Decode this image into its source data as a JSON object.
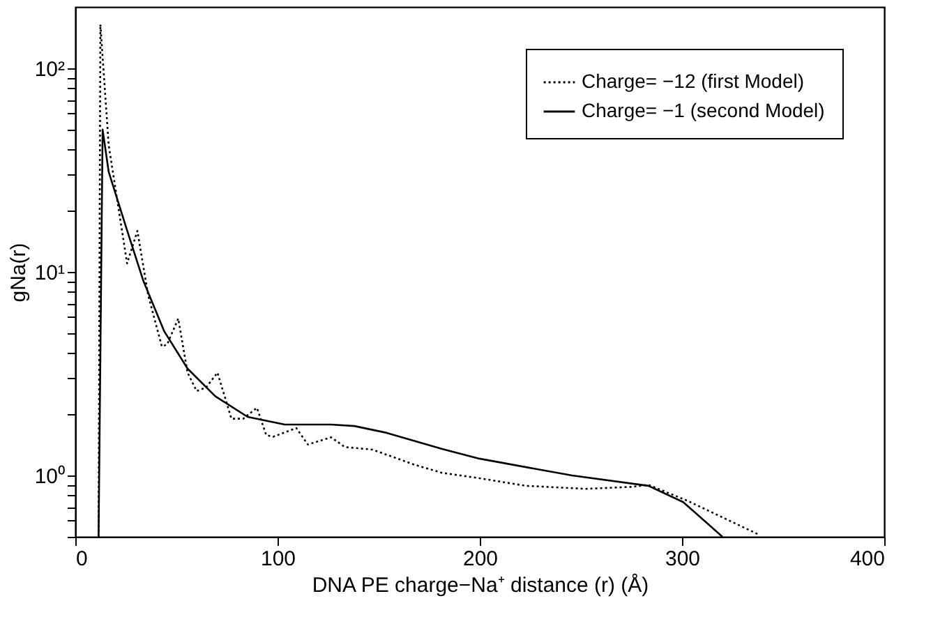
{
  "chart_data": {
    "type": "line",
    "xlabel": "DNA PE charge−Na⁺ distance (r) (Å)",
    "ylabel": "gNa(r)",
    "log": "y",
    "grid": false,
    "legend": "top right",
    "marker": "none",
    "xlim": [
      0,
      400
    ],
    "xticks": [
      0,
      100,
      200,
      300,
      400
    ],
    "ylim": [
      0.5,
      200
    ],
    "yticks": [
      {
        "value": 0.5,
        "label": null
      },
      {
        "value": 0.6,
        "label": null
      },
      {
        "value": 0.7,
        "label": null
      },
      {
        "value": 0.8,
        "label": null
      },
      {
        "value": 0.9,
        "label": null
      },
      {
        "value": 1,
        "label": "10⁰"
      },
      {
        "value": 2,
        "label": null
      },
      {
        "value": 3,
        "label": null
      },
      {
        "value": 4,
        "label": null
      },
      {
        "value": 5,
        "label": null
      },
      {
        "value": 6,
        "label": null
      },
      {
        "value": 7,
        "label": null
      },
      {
        "value": 8,
        "label": null
      },
      {
        "value": 9,
        "label": null
      },
      {
        "value": 10,
        "label": "10¹"
      },
      {
        "value": 20,
        "label": null
      },
      {
        "value": 30,
        "label": null
      },
      {
        "value": 40,
        "label": null
      },
      {
        "value": 50,
        "label": null
      },
      {
        "value": 60,
        "label": null
      },
      {
        "value": 70,
        "label": null
      },
      {
        "value": 80,
        "label": null
      },
      {
        "value": 90,
        "label": null
      },
      {
        "value": 100,
        "label": "10²"
      }
    ],
    "series": [
      {
        "name": "Charge= −12 (first Model)",
        "color": "#000000",
        "line_style": "dotted",
        "x": [
          11.5,
          12.4,
          16.5,
          25.6,
          30.7,
          36,
          42.8,
          45.4,
          50.9,
          55.5,
          60,
          64.6,
          70.3,
          77.2,
          83,
          89.8,
          94.4,
          97.8,
          109.3,
          115,
          126.5,
          133.3,
          147,
          167.7,
          181.4,
          199.8,
          222.7,
          252.4,
          275.4,
          283.4,
          302.9,
          338.4
        ],
        "values": [
          0.5,
          164,
          42,
          11.0,
          15.9,
          7.7,
          4.3,
          4.4,
          5.9,
          3.2,
          2.6,
          2.7,
          3.2,
          1.9,
          1.9,
          2.15,
          1.58,
          1.55,
          1.71,
          1.42,
          1.54,
          1.38,
          1.34,
          1.13,
          1.03,
          0.97,
          0.89,
          0.86,
          0.88,
          0.9,
          0.75,
          0.51
        ]
      },
      {
        "name": "Charge= −1 (second Model)",
        "color": "#000000",
        "line_style": "solid",
        "x": [
          11.5,
          13.5,
          16.5,
          25.6,
          33.7,
          44,
          55.5,
          69.2,
          85.2,
          103.6,
          126.5,
          138,
          154,
          181.4,
          199.8,
          245.6,
          283.4,
          300.6,
          320
        ],
        "values": [
          0.5,
          50,
          31,
          16,
          9.0,
          5.1,
          3.35,
          2.45,
          1.94,
          1.78,
          1.78,
          1.75,
          1.62,
          1.35,
          1.21,
          1.0,
          0.89,
          0.74,
          0.5
        ]
      }
    ]
  }
}
